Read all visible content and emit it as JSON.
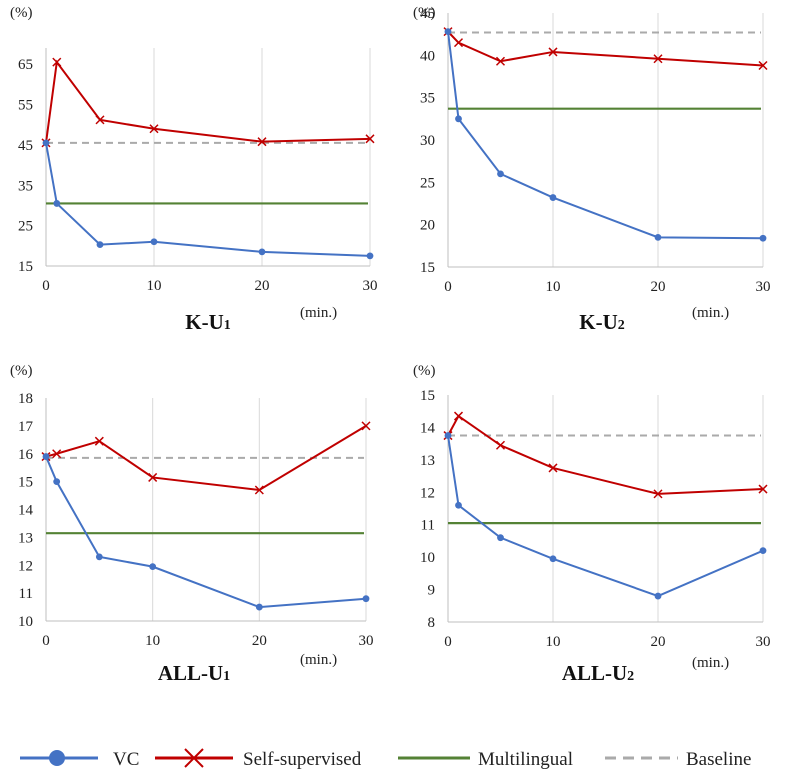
{
  "colors": {
    "vc": "#4472C4",
    "self": "#C00000",
    "multi": "#548235",
    "base": "#AAAAAA",
    "grid": "#D9D9D9",
    "axis": "#BFBFBF"
  },
  "legend": {
    "vc": "VC",
    "self": "Self-supervised",
    "multi": "Multilingual",
    "base": "Baseline"
  },
  "chart_data": [
    {
      "type": "line",
      "title": "K-U1",
      "title_main": "K-U",
      "title_sub": "1",
      "ylabel": "(%)",
      "xlabel": "(min.)",
      "grid": "vertical",
      "x": [
        0,
        1,
        5,
        10,
        20,
        30
      ],
      "xticks": [
        0,
        10,
        20,
        30
      ],
      "xlim": [
        0,
        30
      ],
      "ylim": [
        15,
        69
      ],
      "yticks": [
        15,
        25,
        35,
        45,
        55,
        65
      ],
      "series": [
        {
          "name": "VC",
          "key": "vc",
          "values": [
            45.5,
            30.5,
            20.3,
            21.0,
            18.5,
            17.5
          ]
        },
        {
          "name": "Self-supervised",
          "key": "self",
          "values": [
            45.5,
            65.5,
            51.2,
            49.0,
            45.8,
            46.5
          ]
        }
      ],
      "multilingual": 30.5,
      "baseline": 45.5
    },
    {
      "type": "line",
      "title": "K-U2",
      "title_main": "K-U",
      "title_sub": "2",
      "ylabel": "(%)",
      "xlabel": "(min.)",
      "grid": "vertical",
      "x": [
        0,
        1,
        5,
        10,
        20,
        30
      ],
      "xticks": [
        0,
        10,
        20,
        30
      ],
      "xlim": [
        0,
        30
      ],
      "ylim": [
        15,
        45
      ],
      "yticks": [
        15,
        20,
        25,
        30,
        35,
        40,
        45
      ],
      "series": [
        {
          "name": "VC",
          "key": "vc",
          "values": [
            42.8,
            32.5,
            26.0,
            23.2,
            18.5,
            18.4
          ]
        },
        {
          "name": "Self-supervised",
          "key": "self",
          "values": [
            42.8,
            41.5,
            39.3,
            40.4,
            39.6,
            38.8
          ]
        }
      ],
      "multilingual": 33.7,
      "baseline": 42.7
    },
    {
      "type": "line",
      "title": "ALL-U1",
      "title_main": "ALL-U",
      "title_sub": "1",
      "ylabel": "(%)",
      "xlabel": "(min.)",
      "grid": "vertical",
      "x": [
        0,
        1,
        5,
        10,
        20,
        30
      ],
      "xticks": [
        0,
        10,
        20,
        30
      ],
      "xlim": [
        0,
        30
      ],
      "ylim": [
        10,
        18
      ],
      "yticks": [
        10,
        11,
        12,
        13,
        14,
        15,
        16,
        17,
        18
      ],
      "series": [
        {
          "name": "VC",
          "key": "vc",
          "values": [
            15.9,
            15.0,
            12.3,
            11.95,
            10.5,
            10.8
          ]
        },
        {
          "name": "Self-supervised",
          "key": "self",
          "values": [
            15.9,
            16.0,
            16.45,
            15.15,
            14.7,
            17.0
          ]
        }
      ],
      "multilingual": 13.15,
      "baseline": 15.85
    },
    {
      "type": "line",
      "title": "ALL-U2",
      "title_main": "ALL-U",
      "title_sub": "2",
      "ylabel": "(%)",
      "xlabel": "(min.)",
      "grid": "vertical",
      "x": [
        0,
        1,
        5,
        10,
        20,
        30
      ],
      "xticks": [
        0,
        10,
        20,
        30
      ],
      "xlim": [
        0,
        30
      ],
      "ylim": [
        8,
        15
      ],
      "yticks": [
        8,
        9,
        10,
        11,
        12,
        13,
        14,
        15
      ],
      "series": [
        {
          "name": "VC",
          "key": "vc",
          "values": [
            13.75,
            11.6,
            10.6,
            9.95,
            8.8,
            10.2
          ]
        },
        {
          "name": "Self-supervised",
          "key": "self",
          "values": [
            13.75,
            14.35,
            13.45,
            12.75,
            11.95,
            12.1
          ]
        }
      ],
      "multilingual": 11.05,
      "baseline": 13.75
    }
  ]
}
